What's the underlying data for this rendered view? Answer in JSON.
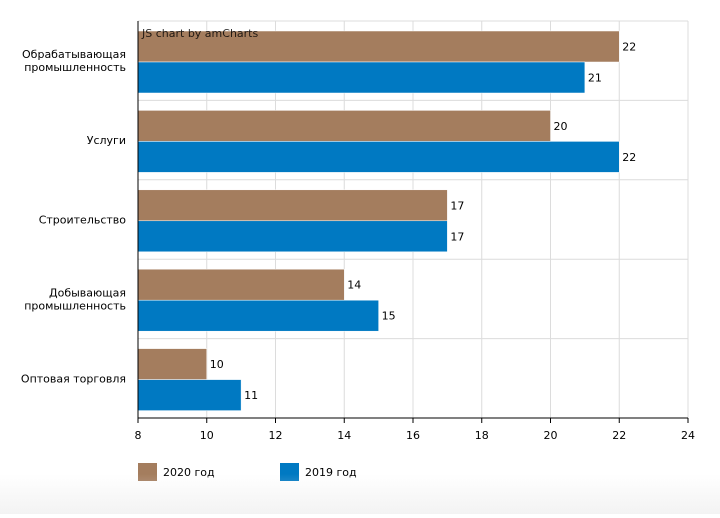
{
  "chart_data": {
    "type": "bar",
    "orientation": "horizontal",
    "title": "",
    "xlabel": "",
    "ylabel": "",
    "xlim": [
      8,
      24
    ],
    "ticks": [
      8,
      10,
      12,
      14,
      16,
      18,
      20,
      22,
      24
    ],
    "grid": true,
    "legend_position": "bottom-left",
    "credit": "JS chart by amCharts",
    "categories": [
      [
        "Обрабатывающая",
        "промышленность"
      ],
      [
        "Услуги"
      ],
      [
        "Строительство"
      ],
      [
        "Добывающая",
        "промышленность"
      ],
      [
        "Оптовая торговля"
      ]
    ],
    "series": [
      {
        "name": "2020 год",
        "color": "#a47d5e",
        "values": [
          22,
          20,
          17,
          14,
          10
        ]
      },
      {
        "name": "2019 год",
        "color": "#0079c2",
        "values": [
          21,
          22,
          17,
          15,
          11
        ]
      }
    ]
  }
}
